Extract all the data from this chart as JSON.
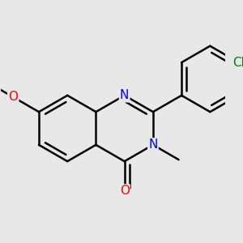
{
  "bg_color": "#e8e8e8",
  "bond_color": "#000000",
  "bond_width": 1.8,
  "dbo": 0.055,
  "atom_colors": {
    "N": "#0000ff",
    "O": "#ff0000",
    "Cl": "#008000",
    "C": "#000000"
  },
  "font_size": 11,
  "fig_size": [
    3.0,
    3.0
  ],
  "dpi": 100,
  "s": 0.36
}
